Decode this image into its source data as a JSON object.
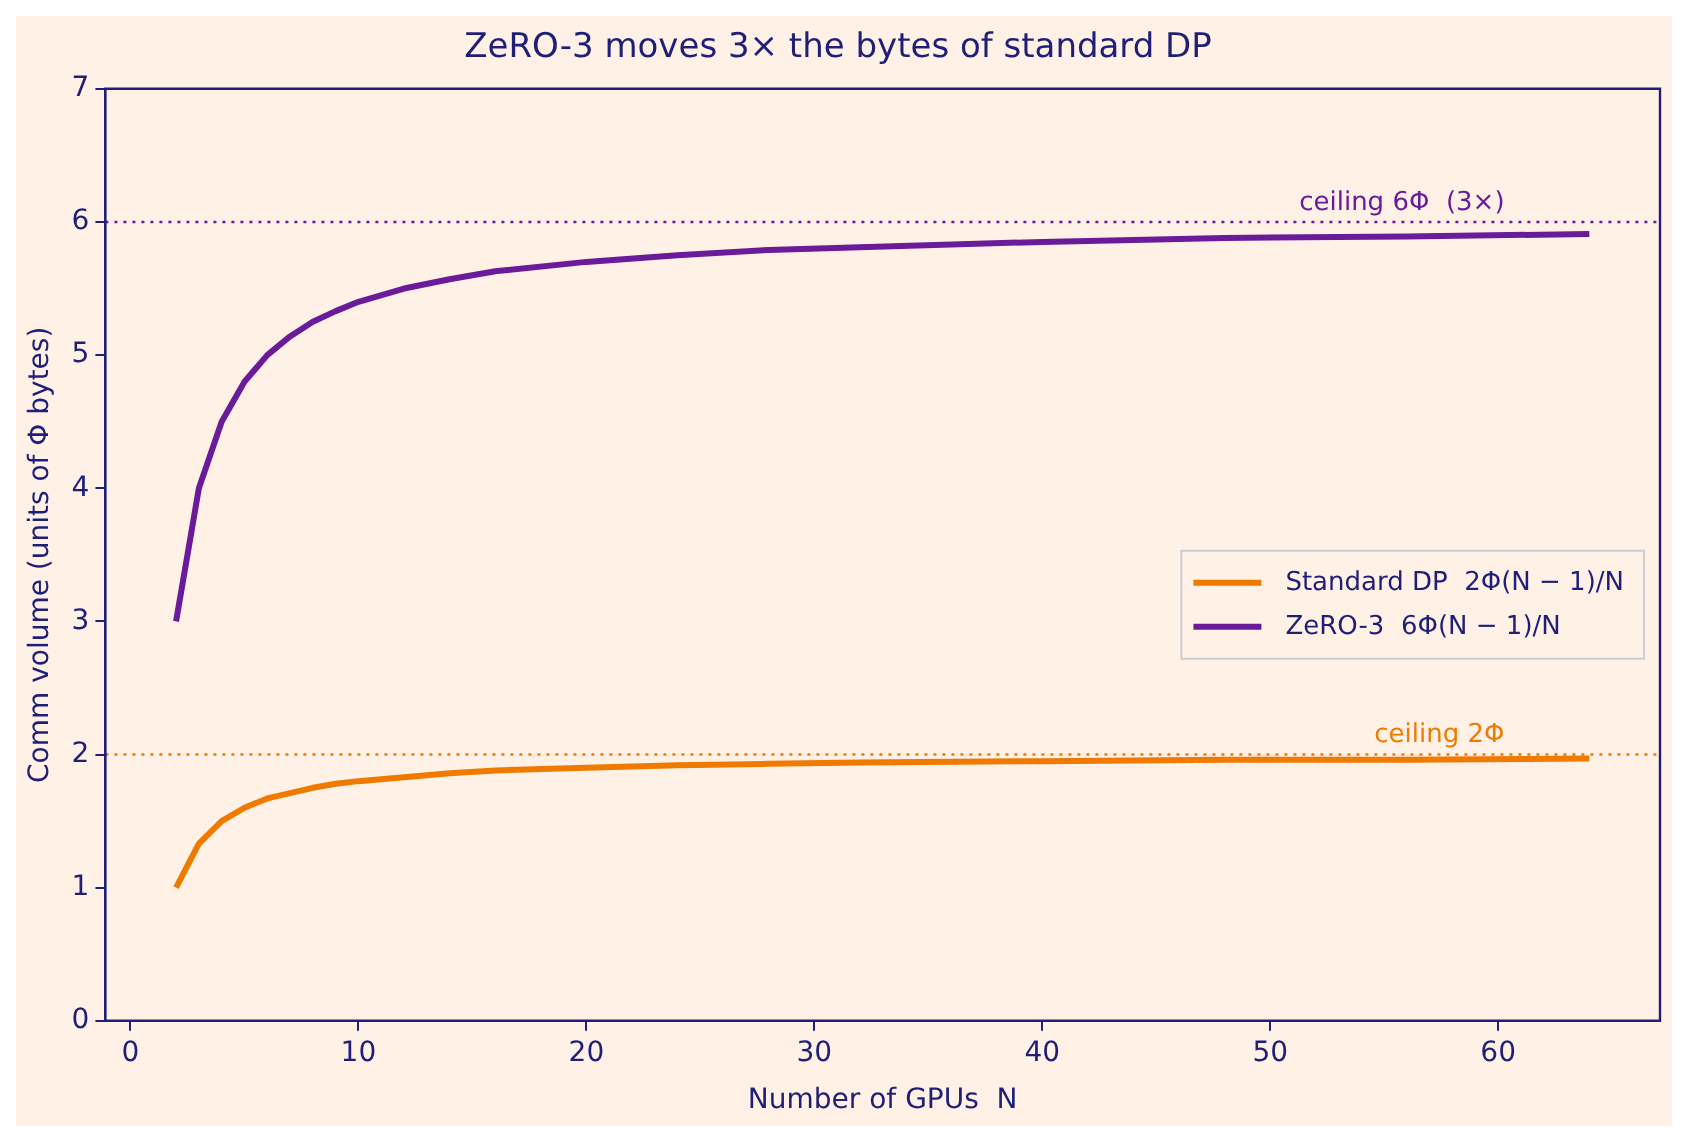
{
  "chart_data": {
    "type": "line",
    "title": "ZeRO-3 moves 3× the bytes of standard DP",
    "xlabel": "Number of GPUs  N",
    "ylabel": "Comm volume (units of Φ bytes)",
    "x": [
      2,
      3,
      4,
      5,
      6,
      7,
      8,
      9,
      10,
      12,
      14,
      16,
      20,
      24,
      28,
      32,
      40,
      48,
      56,
      64
    ],
    "series": [
      {
        "name": "Standard DP  2Φ(N − 1)/N",
        "color": "#ef7a00",
        "values": [
          1,
          1.33,
          1.5,
          1.6,
          1.67,
          1.71,
          1.75,
          1.78,
          1.8,
          1.83,
          1.86,
          1.88,
          1.9,
          1.92,
          1.93,
          1.94,
          1.95,
          1.96,
          1.96,
          1.97
        ]
      },
      {
        "name": "ZeRO-3  6Φ(N − 1)/N",
        "color": "#6a1b9a",
        "values": [
          3,
          4,
          4.5,
          4.8,
          5,
          5.14,
          5.25,
          5.33,
          5.4,
          5.5,
          5.57,
          5.63,
          5.7,
          5.75,
          5.79,
          5.81,
          5.85,
          5.88,
          5.89,
          5.91
        ]
      }
    ],
    "xlim": [
      -1.1,
      67.1
    ],
    "xticks": [
      0,
      10,
      20,
      30,
      40,
      50,
      60
    ],
    "ylim": [
      0,
      7
    ],
    "yticks": [
      0,
      1,
      2,
      3,
      4,
      5,
      6,
      7
    ],
    "ref_lines": [
      {
        "axis": "y",
        "value": 6,
        "label": "ceiling 6Φ  (3×)",
        "color": "#6a1b9a",
        "line_style": "dotted"
      },
      {
        "axis": "y",
        "value": 2,
        "label": "ceiling 2Φ",
        "color": "#ef7a00",
        "line_style": "dotted"
      }
    ],
    "grid": false,
    "legend": "center right",
    "marker": "none",
    "line_style": "solid"
  }
}
